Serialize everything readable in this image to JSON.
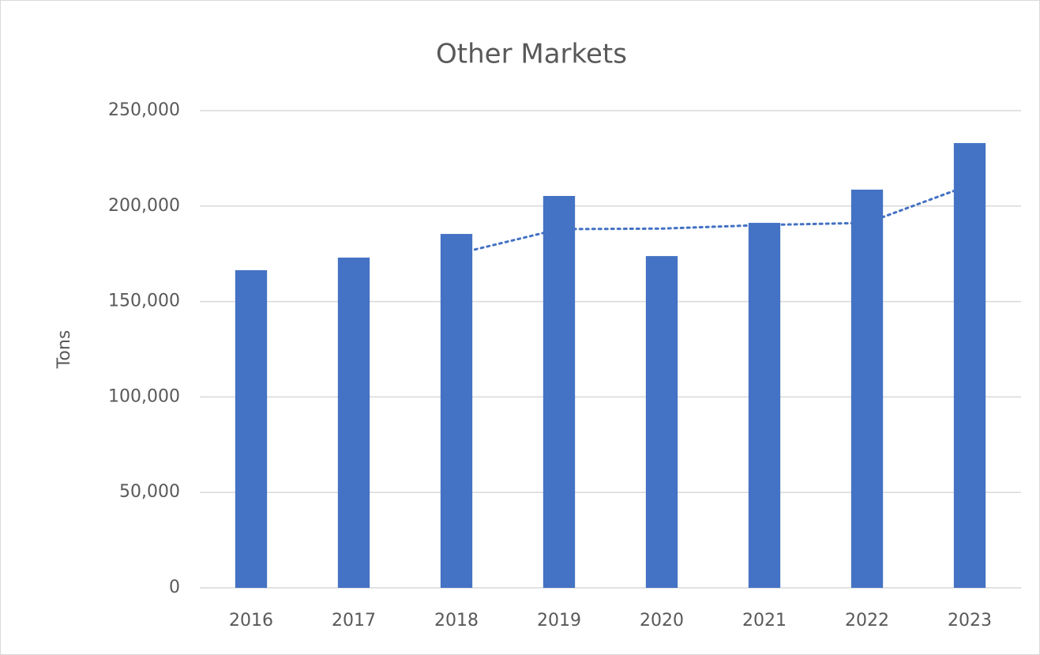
{
  "chart_data": {
    "type": "bar",
    "title": "Other Markets",
    "y_label": "Tons",
    "categories": [
      "2016",
      "2017",
      "2018",
      "2019",
      "2020",
      "2021",
      "2022",
      "2023"
    ],
    "values": [
      166400,
      173000,
      185400,
      205300,
      173800,
      191200,
      208600,
      233000
    ],
    "color": "#4472c4",
    "trendline": {
      "type": "moving_average",
      "period": 3,
      "color": "#4472c4",
      "style": "dotted",
      "values": [
        null,
        null,
        174900,
        187900,
        188200,
        190100,
        191200,
        211000
      ]
    },
    "ylim": [
      0,
      250000
    ],
    "yticks": [
      {
        "value": 0,
        "label": "0"
      },
      {
        "value": 50000,
        "label": "50,000"
      },
      {
        "value": 100000,
        "label": "100,000"
      },
      {
        "value": 150000,
        "label": "150,000"
      },
      {
        "value": 200000,
        "label": "200,000"
      },
      {
        "value": 250000,
        "label": "250,000"
      }
    ],
    "grid": true
  }
}
